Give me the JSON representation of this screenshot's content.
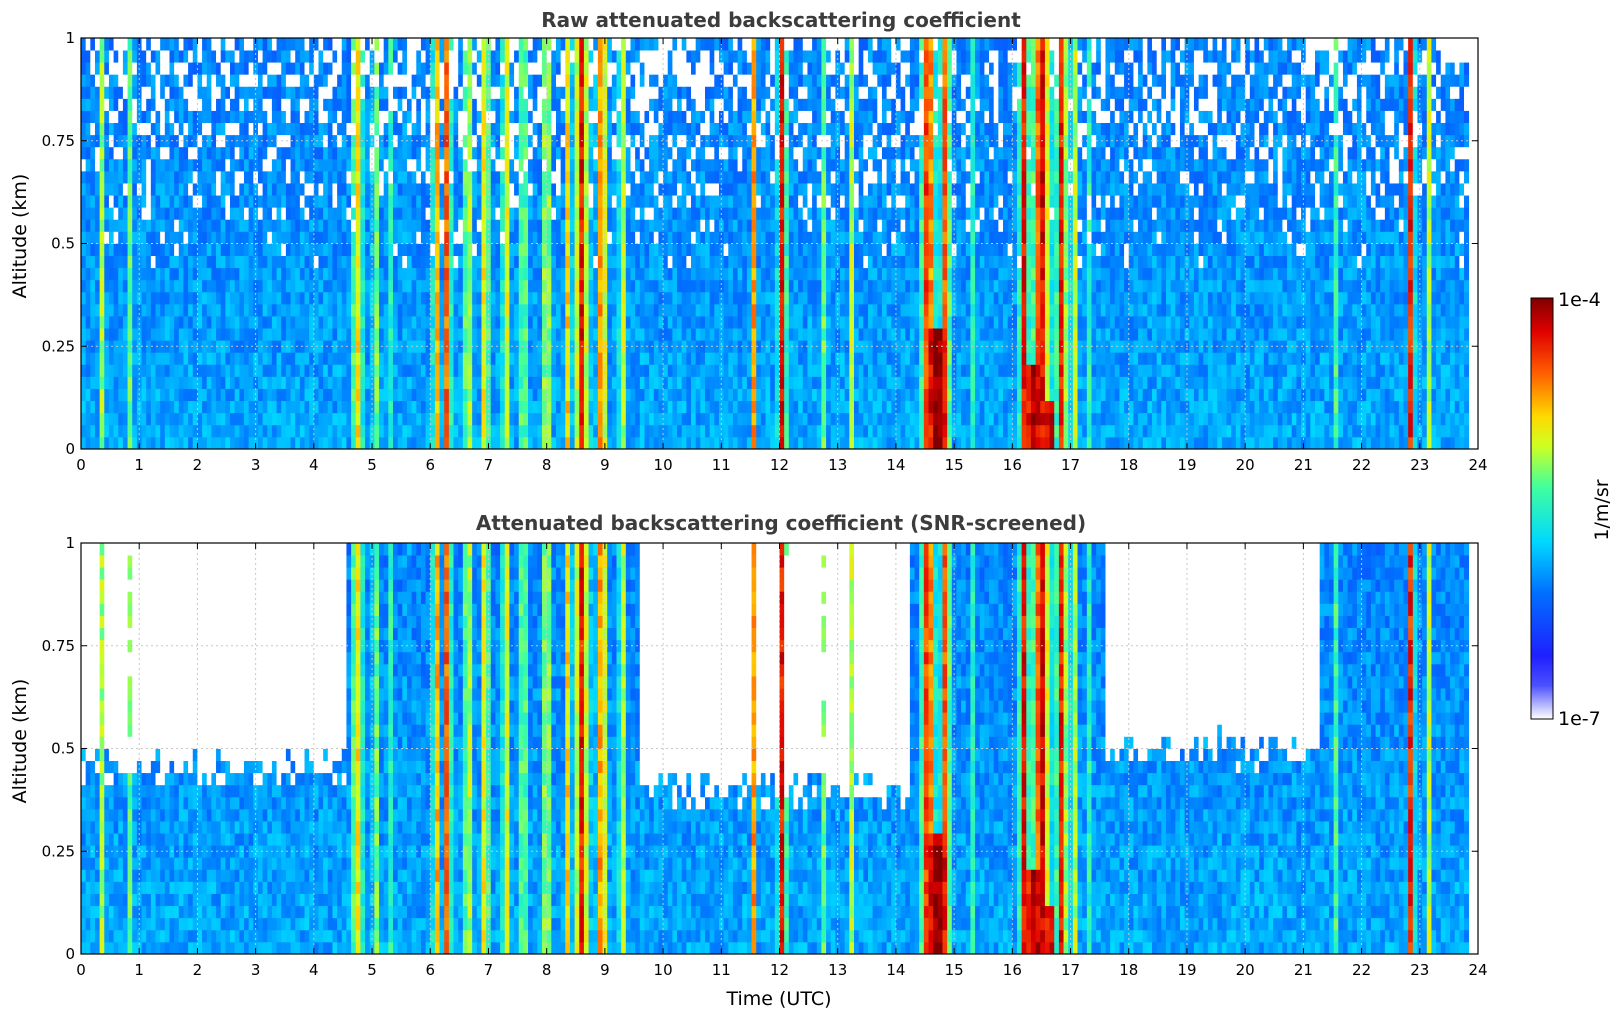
{
  "chart_data": [
    {
      "type": "heatmap",
      "title": "Raw attenuated backscattering coefficient",
      "xlabel": "",
      "ylabel": "Altitude (km)",
      "xlim": [
        0,
        24
      ],
      "ylim": [
        0,
        1
      ],
      "xticks": [
        "0",
        "1",
        "2",
        "3",
        "4",
        "5",
        "6",
        "7",
        "8",
        "9",
        "10",
        "11",
        "12",
        "13",
        "14",
        "15",
        "16",
        "17",
        "18",
        "19",
        "20",
        "21",
        "22",
        "23",
        "24"
      ],
      "yticks": [
        "0",
        "0.25",
        "0.5",
        "0.75",
        "1"
      ],
      "grid": true,
      "screened": false
    },
    {
      "type": "heatmap",
      "title": "Attenuated backscattering coefficient (SNR-screened)",
      "xlabel": "Time (UTC)",
      "ylabel": "Altitude (km)",
      "xlim": [
        0,
        24
      ],
      "ylim": [
        0,
        1
      ],
      "xticks": [
        "0",
        "1",
        "2",
        "3",
        "4",
        "5",
        "6",
        "7",
        "8",
        "9",
        "10",
        "11",
        "12",
        "13",
        "14",
        "15",
        "16",
        "17",
        "18",
        "19",
        "20",
        "21",
        "22",
        "23",
        "24"
      ],
      "yticks": [
        "0",
        "0.25",
        "0.5",
        "0.75",
        "1"
      ],
      "grid": true,
      "screened": true
    }
  ],
  "colorbar": {
    "label": "1/m/sr",
    "max_label": "1e-4",
    "min_label": "1e-7",
    "range_log10": [
      -7,
      -4
    ],
    "colormap": "jet"
  },
  "signal": {
    "data_end_hour": 23.8,
    "background_log10": -5.9,
    "plumes": [
      {
        "t": 0.35,
        "w": 0.05,
        "v": -5.1,
        "top": 1.0
      },
      {
        "t": 0.85,
        "w": 0.04,
        "v": -5.2,
        "top": 1.0
      },
      {
        "t": 3.05,
        "w": 0.04,
        "v": -5.35,
        "top": 0.12
      },
      {
        "t": 4.75,
        "w": 0.12,
        "v": -4.9,
        "top": 1.0
      },
      {
        "t": 5.05,
        "w": 0.05,
        "v": -4.8,
        "top": 1.0
      },
      {
        "t": 5.35,
        "w": 0.05,
        "v": -5.0,
        "top": 1.0
      },
      {
        "t": 5.6,
        "w": 0.05,
        "v": -5.2,
        "top": 1.0
      },
      {
        "t": 6.1,
        "w": 0.06,
        "v": -4.6,
        "top": 1.0
      },
      {
        "t": 6.3,
        "w": 0.05,
        "v": -4.3,
        "top": 1.0
      },
      {
        "t": 6.65,
        "w": 0.1,
        "v": -5.0,
        "top": 1.0
      },
      {
        "t": 6.95,
        "w": 0.06,
        "v": -4.6,
        "top": 1.0
      },
      {
        "t": 7.3,
        "w": 0.08,
        "v": -4.9,
        "top": 1.0
      },
      {
        "t": 7.6,
        "w": 0.06,
        "v": -4.8,
        "top": 1.0
      },
      {
        "t": 8.0,
        "w": 0.1,
        "v": -5.0,
        "top": 1.0
      },
      {
        "t": 8.35,
        "w": 0.05,
        "v": -4.8,
        "top": 1.0
      },
      {
        "t": 8.6,
        "w": 0.1,
        "v": -4.3,
        "top": 1.0
      },
      {
        "t": 8.95,
        "w": 0.08,
        "v": -4.5,
        "top": 1.0
      },
      {
        "t": 9.3,
        "w": 0.08,
        "v": -5.0,
        "top": 1.0
      },
      {
        "t": 11.55,
        "w": 0.04,
        "v": -4.6,
        "top": 1.0
      },
      {
        "t": 12.05,
        "w": 0.06,
        "v": -4.25,
        "top": 1.0
      },
      {
        "t": 12.75,
        "w": 0.04,
        "v": -5.2,
        "top": 1.0
      },
      {
        "t": 13.25,
        "w": 0.04,
        "v": -5.0,
        "top": 1.0
      },
      {
        "t": 14.55,
        "w": 0.1,
        "v": -4.3,
        "top": 1.0
      },
      {
        "t": 14.85,
        "w": 0.08,
        "v": -4.5,
        "top": 1.0
      },
      {
        "t": 15.35,
        "w": 0.05,
        "v": -5.0,
        "top": 1.0
      },
      {
        "t": 16.2,
        "w": 0.07,
        "v": -4.3,
        "top": 1.0
      },
      {
        "t": 16.5,
        "w": 0.12,
        "v": -4.2,
        "top": 1.0
      },
      {
        "t": 16.85,
        "w": 0.08,
        "v": -4.3,
        "top": 1.0
      },
      {
        "t": 17.05,
        "w": 0.04,
        "v": -4.4,
        "top": 1.0
      },
      {
        "t": 17.35,
        "w": 0.05,
        "v": -5.0,
        "top": 1.0
      },
      {
        "t": 21.55,
        "w": 0.04,
        "v": -5.3,
        "top": 1.0
      },
      {
        "t": 22.85,
        "w": 0.05,
        "v": -4.3,
        "top": 1.0
      },
      {
        "t": 23.15,
        "w": 0.04,
        "v": -5.0,
        "top": 1.0
      }
    ],
    "cores": [
      {
        "t": 14.72,
        "w": 0.15,
        "v": -4.0,
        "top": 0.28
      },
      {
        "t": 16.38,
        "w": 0.12,
        "v": -4.05,
        "top": 0.22
      },
      {
        "t": 16.65,
        "w": 0.08,
        "v": -4.1,
        "top": 0.12
      }
    ],
    "clear_sky_top": [
      {
        "t0": 0,
        "t1": 4.6,
        "floor": 0.45
      },
      {
        "t0": 9.6,
        "t1": 14.2,
        "floor": 0.4
      },
      {
        "t0": 17.6,
        "t1": 21.3,
        "floor": 0.5
      }
    ]
  }
}
